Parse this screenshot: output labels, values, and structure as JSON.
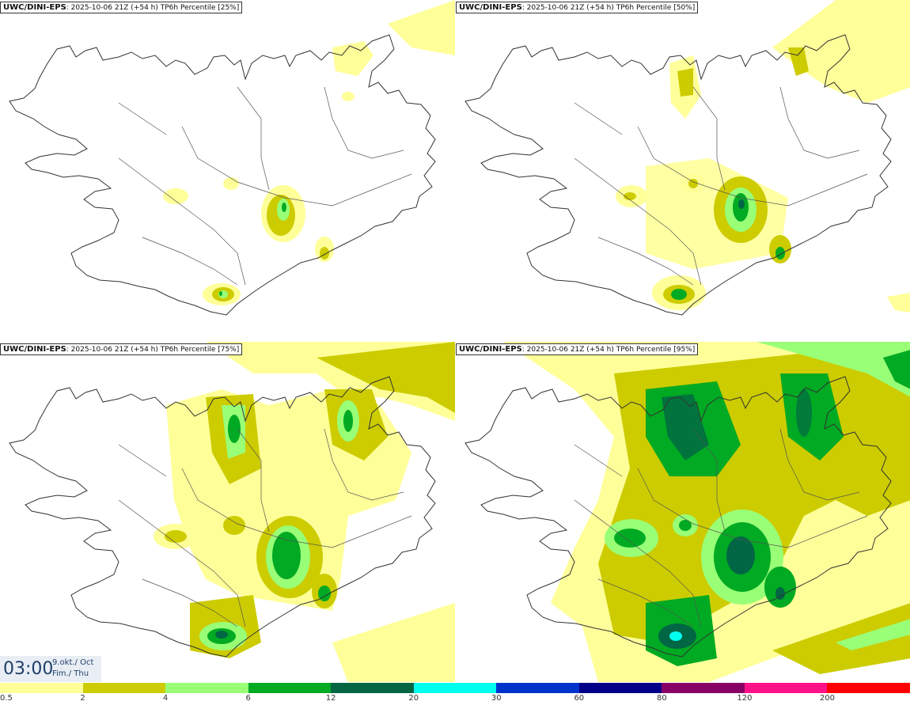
{
  "panels": [
    {
      "model": "UWC/DINI-EPS",
      "info": ": 2025-10-06 21Z (+54 h) TP6h Percentile [25%]"
    },
    {
      "model": "UWC/DINI-EPS",
      "info": ": 2025-10-06 21Z (+54 h) TP6h Percentile [50%]"
    },
    {
      "model": "UWC/DINI-EPS",
      "info": ": 2025-10-06 21Z (+54 h) TP6h Percentile [75%]"
    },
    {
      "model": "UWC/DINI-EPS",
      "info": ": 2025-10-06 21Z (+54 h) TP6h Percentile [95%]"
    }
  ],
  "valid_time": {
    "time": "03:00",
    "date": "9.okt./ Oct",
    "day": "Fim./ Thu"
  },
  "legend": {
    "labels": [
      "0.5",
      "2",
      "4",
      "6",
      "12",
      "20",
      "30",
      "60",
      "80",
      "120",
      "200"
    ],
    "colors": [
      "#ffff99",
      "#cccc00",
      "#99ff77",
      "#00aa22",
      "#006644",
      "#00ffee",
      "#0033cc",
      "#000088",
      "#880066",
      "#ff1188",
      "#ff0000"
    ]
  },
  "colors": {
    "coast": "#333333",
    "accent": "#1f3f6a"
  }
}
